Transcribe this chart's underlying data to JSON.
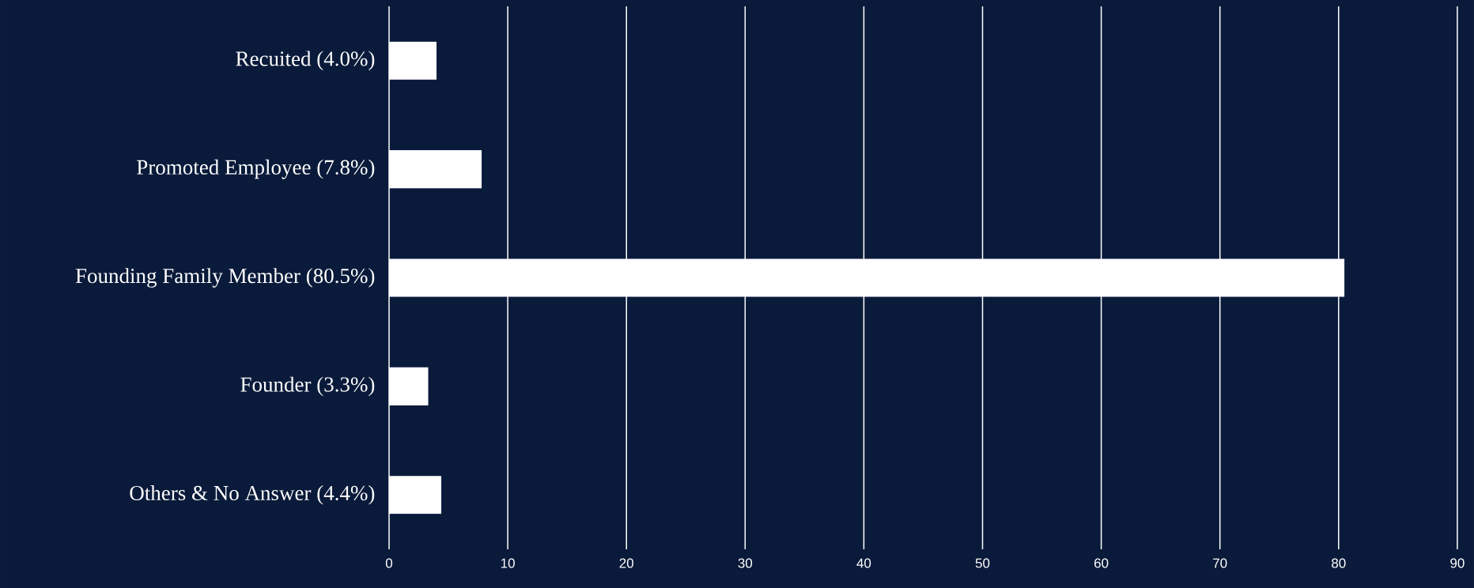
{
  "chart_data": {
    "type": "bar",
    "orientation": "horizontal",
    "categories": [
      "Recuited (4.0%)",
      "Promoted Employee (7.8%)",
      "Founding Family Member (80.5%)",
      "Founder (3.3%)",
      "Others & No Answer (4.4%)"
    ],
    "values": [
      4.0,
      7.8,
      80.5,
      3.3,
      4.4
    ],
    "color": "#ffffff",
    "xlim": [
      0,
      90
    ],
    "xticks": [
      0,
      10,
      20,
      30,
      40,
      50,
      60,
      70,
      80,
      90
    ],
    "grid": "x"
  }
}
